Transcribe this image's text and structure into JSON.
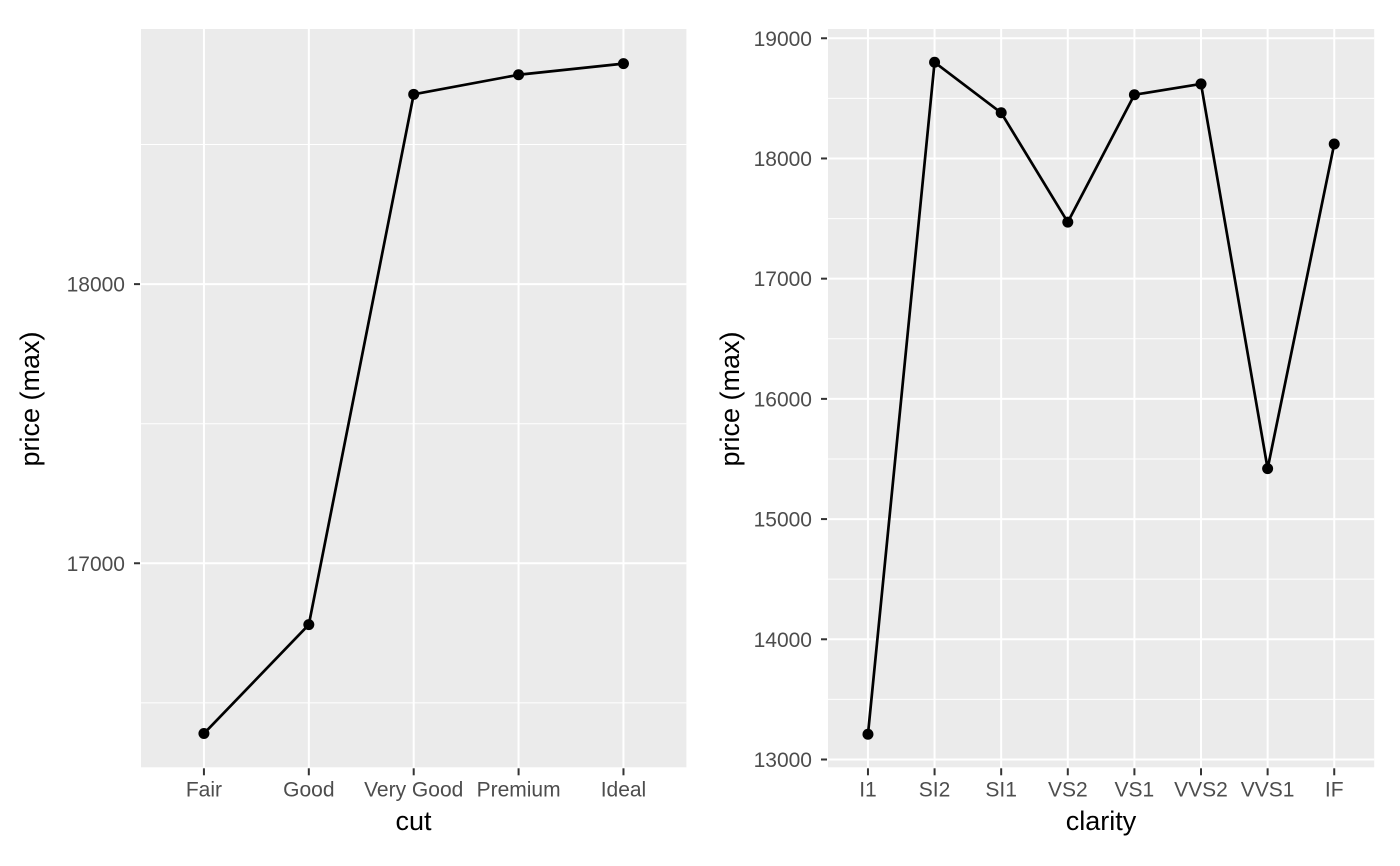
{
  "figure": {
    "background": "#FFFFFF",
    "description": "Two line charts of maximum diamond price by cut and by clarity"
  },
  "colors": {
    "panel_background": "#EBEBEB",
    "grid_line": "#FFFFFF",
    "data_line": "#000000",
    "data_point": "#000000",
    "axis_text": "#4D4D4D",
    "axis_title": "#000000",
    "tick_mark": "#333333"
  },
  "chart_data": [
    {
      "type": "line",
      "title": "",
      "xlabel": "cut",
      "ylabel": "price (max)",
      "legend": "none",
      "grid": "on",
      "categories": [
        "Fair",
        "Good",
        "Very Good",
        "Premium",
        "Ideal"
      ],
      "values": [
        16390,
        16780,
        18680,
        18750,
        18790
      ],
      "ylim": [
        16269,
        18914
      ],
      "y_major_ticks": [
        {
          "value": 17000,
          "label": "17000"
        },
        {
          "value": 18000,
          "label": "18000"
        }
      ],
      "y_minor_ticks": [
        16500,
        17500,
        18500
      ]
    },
    {
      "type": "line",
      "title": "",
      "xlabel": "clarity",
      "ylabel": "price (max)",
      "legend": "none",
      "grid": "on",
      "categories": [
        "I1",
        "SI2",
        "SI1",
        "VS2",
        "VS1",
        "VVS2",
        "VVS1",
        "IF"
      ],
      "values": [
        13210,
        18800,
        18380,
        17470,
        18530,
        18620,
        15420,
        18120
      ],
      "ylim": [
        12935,
        19077
      ],
      "y_major_ticks": [
        {
          "value": 13000,
          "label": "13000"
        },
        {
          "value": 14000,
          "label": "14000"
        },
        {
          "value": 15000,
          "label": "15000"
        },
        {
          "value": 16000,
          "label": "16000"
        },
        {
          "value": 17000,
          "label": "17000"
        },
        {
          "value": 18000,
          "label": "18000"
        },
        {
          "value": 19000,
          "label": "19000"
        }
      ],
      "y_minor_ticks": [
        13500,
        14500,
        15500,
        16500,
        17500,
        18500
      ]
    }
  ]
}
